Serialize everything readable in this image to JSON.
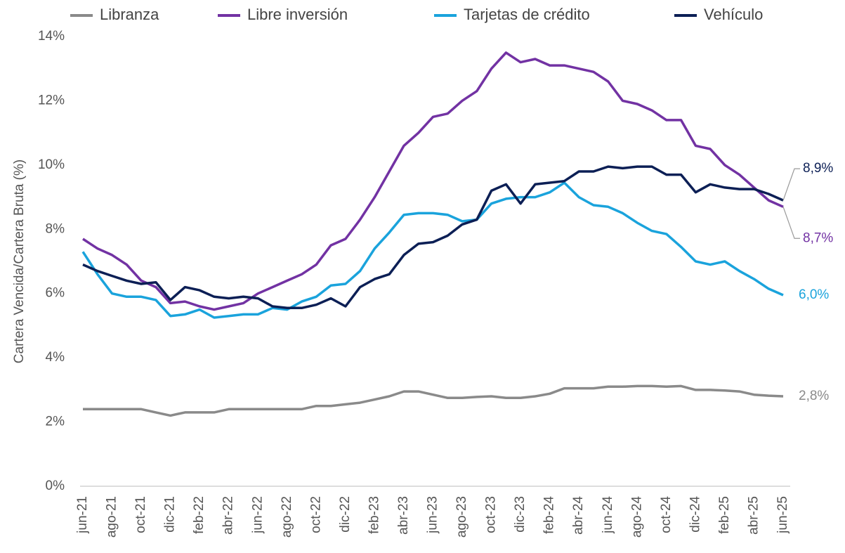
{
  "chart_data": {
    "type": "line",
    "y_label": "Cartera Vencida/Cartera Bruta (%)",
    "categories": [
      "jun-21",
      null,
      "ago-21",
      null,
      "oct-21",
      null,
      "dic-21",
      null,
      "feb-22",
      null,
      "abr-22",
      null,
      "jun-22",
      null,
      "ago-22",
      null,
      "oct-22",
      null,
      "dic-22",
      null,
      "feb-23",
      null,
      "abr-23",
      null,
      "jun-23",
      null,
      "ago-23",
      null,
      "oct-23",
      null,
      "dic-23",
      null,
      "feb-24",
      null,
      "abr-24",
      null,
      "jun-24",
      null,
      "ago-24",
      null,
      "oct-24",
      null,
      "dic-24",
      null,
      "feb-25",
      null,
      "abr-25",
      null,
      "jun-25"
    ],
    "series": [
      {
        "name": "Libranza",
        "color": "#8a8a8a",
        "values": [
          2.4,
          2.4,
          2.4,
          2.4,
          2.4,
          2.3,
          2.2,
          2.3,
          2.3,
          2.3,
          2.4,
          2.4,
          2.4,
          2.4,
          2.4,
          2.4,
          2.5,
          2.5,
          2.55,
          2.6,
          2.7,
          2.8,
          2.95,
          2.95,
          2.85,
          2.75,
          2.75,
          2.78,
          2.8,
          2.75,
          2.75,
          2.8,
          2.88,
          3.05,
          3.05,
          3.05,
          3.1,
          3.1,
          3.12,
          3.12,
          3.1,
          3.12,
          3.0,
          3.0,
          2.98,
          2.95,
          2.85,
          2.82,
          2.8
        ],
        "value_labels": [
          null,
          null,
          null,
          null,
          null,
          null,
          null,
          null,
          null,
          null,
          null,
          null,
          null,
          null,
          null,
          null,
          null,
          null,
          null,
          null,
          null,
          null,
          null,
          null,
          null,
          null,
          null,
          null,
          null,
          null,
          null,
          null,
          null,
          null,
          null,
          null,
          null,
          null,
          null,
          null,
          null,
          null,
          null,
          null,
          null,
          null,
          null,
          null,
          "2,8%"
        ]
      },
      {
        "name": "Libre inversión",
        "color": "#7232a3",
        "values": [
          7.7,
          7.4,
          7.2,
          6.9,
          6.4,
          6.2,
          5.7,
          5.75,
          5.6,
          5.5,
          5.6,
          5.7,
          6.0,
          6.2,
          6.4,
          6.6,
          6.9,
          7.5,
          7.7,
          8.3,
          9.0,
          9.8,
          10.6,
          11.0,
          11.5,
          11.6,
          12.0,
          12.3,
          13.0,
          13.5,
          13.2,
          13.3,
          13.1,
          13.1,
          13.0,
          12.9,
          12.6,
          12.0,
          11.9,
          11.7,
          11.4,
          11.4,
          10.6,
          10.5,
          10.0,
          9.7,
          9.3,
          8.9,
          8.7
        ],
        "value_labels": [
          null,
          null,
          null,
          null,
          null,
          null,
          null,
          null,
          null,
          null,
          null,
          null,
          null,
          null,
          null,
          null,
          null,
          null,
          null,
          null,
          null,
          null,
          null,
          null,
          null,
          null,
          null,
          null,
          null,
          null,
          null,
          null,
          null,
          null,
          null,
          null,
          null,
          null,
          null,
          null,
          null,
          null,
          null,
          null,
          null,
          null,
          null,
          null,
          "8,7%"
        ]
      },
      {
        "name": "Tarjetas de crédito",
        "color": "#1aa3dc",
        "values": [
          7.3,
          6.6,
          6.0,
          5.9,
          5.9,
          5.8,
          5.3,
          5.35,
          5.5,
          5.25,
          5.3,
          5.35,
          5.35,
          5.55,
          5.5,
          5.75,
          5.9,
          6.25,
          6.3,
          6.7,
          7.4,
          7.9,
          8.45,
          8.5,
          8.5,
          8.45,
          8.25,
          8.3,
          8.8,
          8.95,
          9.0,
          9.0,
          9.15,
          9.45,
          9.0,
          8.75,
          8.7,
          8.5,
          8.2,
          7.95,
          7.85,
          7.45,
          7.0,
          6.9,
          7.0,
          6.7,
          6.45,
          6.15,
          5.95
        ],
        "value_labels": [
          null,
          null,
          null,
          null,
          null,
          null,
          null,
          null,
          null,
          null,
          null,
          null,
          null,
          null,
          null,
          null,
          null,
          null,
          null,
          null,
          null,
          null,
          null,
          null,
          null,
          null,
          null,
          null,
          null,
          null,
          null,
          null,
          null,
          null,
          null,
          null,
          null,
          null,
          null,
          null,
          null,
          null,
          null,
          null,
          null,
          null,
          null,
          null,
          "6,0%"
        ]
      },
      {
        "name": "Vehículo",
        "color": "#0c1f55",
        "values": [
          6.9,
          6.7,
          6.55,
          6.4,
          6.3,
          6.35,
          5.8,
          6.2,
          6.1,
          5.9,
          5.85,
          5.9,
          5.85,
          5.6,
          5.55,
          5.55,
          5.65,
          5.85,
          5.6,
          6.2,
          6.45,
          6.6,
          7.2,
          7.55,
          7.6,
          7.8,
          8.15,
          8.3,
          9.2,
          9.4,
          8.8,
          9.4,
          9.45,
          9.5,
          9.8,
          9.8,
          9.95,
          9.9,
          9.95,
          9.95,
          9.7,
          9.7,
          9.15,
          9.4,
          9.3,
          9.25,
          9.25,
          9.1,
          8.9
        ],
        "value_labels": [
          null,
          null,
          null,
          null,
          null,
          null,
          null,
          null,
          null,
          null,
          null,
          null,
          null,
          null,
          null,
          null,
          null,
          null,
          null,
          null,
          null,
          null,
          null,
          null,
          null,
          null,
          null,
          null,
          null,
          null,
          null,
          null,
          null,
          null,
          null,
          null,
          null,
          null,
          null,
          null,
          null,
          null,
          null,
          null,
          null,
          null,
          null,
          null,
          "8,9%"
        ]
      }
    ],
    "ylim": [
      0,
      14
    ],
    "yticks": [
      {
        "value": 0,
        "label": "0%"
      },
      {
        "value": 2,
        "label": "2%"
      },
      {
        "value": 4,
        "label": "4%"
      },
      {
        "value": 6,
        "label": "6%"
      },
      {
        "value": 8,
        "label": "8%"
      },
      {
        "value": 10,
        "label": "10%"
      },
      {
        "value": 12,
        "label": "12%"
      },
      {
        "value": 14,
        "label": "14%"
      }
    ],
    "grid": false,
    "legend": "top"
  }
}
